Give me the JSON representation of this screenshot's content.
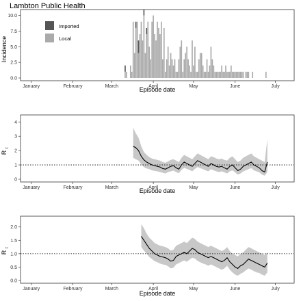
{
  "figure": {
    "title": "Lambton Public Health"
  },
  "chart_data": [
    {
      "type": "bar",
      "subtype": "stacked-bar",
      "title": "Lambton Public Health",
      "xlabel": "Episode date",
      "ylabel": "Incidence",
      "x_ticks": [
        "January",
        "February",
        "March",
        "April",
        "May",
        "June",
        "July"
      ],
      "y_ticks": [
        "0.0",
        "2.5",
        "5.0",
        "7.5",
        "10.0"
      ],
      "ylim": [
        0,
        10.5
      ],
      "legend": {
        "placement": "top-left",
        "entries": [
          {
            "name": "Imported",
            "color": "#555555"
          },
          {
            "name": "Local",
            "color": "#aaaaaa"
          }
        ]
      },
      "x_day_start": 0,
      "series": [
        {
          "name": "Local",
          "color": "#aaaaaa",
          "x": [
            70,
            71,
            74,
            75,
            76,
            77,
            78,
            79,
            80,
            81,
            82,
            83,
            84,
            85,
            86,
            87,
            88,
            89,
            90,
            91,
            92,
            93,
            94,
            95,
            96,
            97,
            98,
            99,
            100,
            101,
            102,
            103,
            104,
            105,
            106,
            107,
            108,
            109,
            110,
            111,
            112,
            113,
            114,
            115,
            116,
            117,
            118,
            119,
            120,
            121,
            122,
            123,
            124,
            125,
            126,
            127,
            128,
            129,
            130,
            131,
            132,
            133,
            134,
            135,
            136,
            137,
            138,
            139,
            140,
            141,
            142,
            143,
            144,
            145,
            146,
            147,
            148,
            149,
            150,
            151,
            152,
            153,
            154,
            155,
            156,
            157,
            158,
            160,
            161,
            162,
            165,
            175
          ],
          "values": [
            1,
            1,
            2,
            1,
            9,
            4,
            8,
            9,
            4,
            7,
            9,
            6,
            10,
            4,
            7,
            9,
            5,
            3,
            9,
            10,
            7,
            6,
            9,
            8,
            7,
            9,
            3,
            8,
            1,
            3,
            5,
            2,
            4,
            3,
            2,
            3,
            1,
            1,
            3,
            5,
            6,
            1,
            3,
            4,
            5,
            3,
            2,
            1,
            6,
            2,
            5,
            1,
            1,
            3,
            4,
            4,
            2,
            1,
            1,
            3,
            1,
            2,
            5,
            3,
            2,
            1,
            1,
            1,
            1,
            1,
            2,
            1,
            1,
            2,
            1,
            1,
            1,
            2,
            1,
            1,
            1,
            1,
            1,
            1,
            1,
            1,
            1,
            1,
            1,
            1,
            1,
            1
          ]
        },
        {
          "name": "Imported",
          "color": "#555555",
          "x": [
            70,
            78,
            80,
            84,
            86
          ],
          "values": [
            1,
            1,
            2,
            1,
            1
          ]
        }
      ]
    },
    {
      "type": "line",
      "xlabel": "Episode date",
      "ylabel": "R",
      "ylabel_sub": "t",
      "x_ticks": [
        "January",
        "February",
        "March",
        "April",
        "May",
        "June",
        "July"
      ],
      "y_ticks": [
        "0",
        "1",
        "2",
        "3",
        "4"
      ],
      "ylim": [
        0,
        4.3
      ],
      "reference_line": 1,
      "series": [
        {
          "name": "",
          "kind": "median",
          "x": [
            76,
            78,
            80,
            82,
            84,
            86,
            88,
            90,
            92,
            94,
            96,
            98,
            100,
            102,
            104,
            106,
            108,
            110,
            112,
            114,
            116,
            118,
            120,
            122,
            124,
            126,
            128,
            130,
            132,
            134,
            136,
            138,
            140,
            142,
            144,
            146,
            148,
            150,
            152,
            154,
            156,
            158,
            160,
            162,
            164,
            166,
            168,
            170,
            172,
            174,
            176
          ],
          "values": [
            2.3,
            2.2,
            2.0,
            1.6,
            1.35,
            1.2,
            1.1,
            1.0,
            0.95,
            0.9,
            0.85,
            0.75,
            0.7,
            0.8,
            0.9,
            0.95,
            0.8,
            0.7,
            1.0,
            1.2,
            1.1,
            1.0,
            0.9,
            1.1,
            1.3,
            1.2,
            1.1,
            1.0,
            0.9,
            1.1,
            1.0,
            0.9,
            0.85,
            0.9,
            0.8,
            0.7,
            0.9,
            1.0,
            0.8,
            0.6,
            0.7,
            0.9,
            1.0,
            1.1,
            1.2,
            1.0,
            0.9,
            0.8,
            0.6,
            0.5,
            1.2
          ]
        },
        {
          "name": "",
          "kind": "upper",
          "x": [
            76,
            78,
            80,
            82,
            84,
            86,
            88,
            90,
            92,
            94,
            96,
            98,
            100,
            102,
            104,
            106,
            108,
            110,
            112,
            114,
            116,
            118,
            120,
            122,
            124,
            126,
            128,
            130,
            132,
            134,
            136,
            138,
            140,
            142,
            144,
            146,
            148,
            150,
            152,
            154,
            156,
            158,
            160,
            162,
            164,
            166,
            168,
            170,
            172,
            174,
            176
          ],
          "values": [
            3.6,
            3.2,
            2.9,
            2.3,
            1.9,
            1.7,
            1.55,
            1.45,
            1.4,
            1.35,
            1.3,
            1.2,
            1.15,
            1.25,
            1.35,
            1.4,
            1.3,
            1.2,
            1.5,
            1.7,
            1.6,
            1.5,
            1.4,
            1.6,
            1.8,
            1.7,
            1.6,
            1.5,
            1.4,
            1.6,
            1.55,
            1.45,
            1.4,
            1.45,
            1.35,
            1.3,
            1.5,
            1.6,
            1.4,
            1.2,
            1.3,
            1.5,
            1.6,
            1.7,
            1.8,
            1.6,
            1.5,
            1.4,
            1.3,
            1.2,
            2.8
          ]
        },
        {
          "name": "",
          "kind": "lower",
          "x": [
            76,
            78,
            80,
            82,
            84,
            86,
            88,
            90,
            92,
            94,
            96,
            98,
            100,
            102,
            104,
            106,
            108,
            110,
            112,
            114,
            116,
            118,
            120,
            122,
            124,
            126,
            128,
            130,
            132,
            134,
            136,
            138,
            140,
            142,
            144,
            146,
            148,
            150,
            152,
            154,
            156,
            158,
            160,
            162,
            164,
            166,
            168,
            170,
            172,
            174,
            176
          ],
          "values": [
            1.5,
            1.4,
            1.3,
            1.05,
            0.85,
            0.75,
            0.7,
            0.62,
            0.58,
            0.55,
            0.5,
            0.45,
            0.4,
            0.5,
            0.55,
            0.6,
            0.5,
            0.42,
            0.65,
            0.8,
            0.72,
            0.65,
            0.55,
            0.72,
            0.85,
            0.78,
            0.7,
            0.62,
            0.55,
            0.7,
            0.62,
            0.55,
            0.5,
            0.55,
            0.48,
            0.4,
            0.55,
            0.62,
            0.48,
            0.32,
            0.4,
            0.55,
            0.62,
            0.7,
            0.78,
            0.62,
            0.55,
            0.48,
            0.32,
            0.25,
            0.5
          ]
        }
      ]
    },
    {
      "type": "line",
      "xlabel": "Episode date",
      "ylabel": "R",
      "ylabel_sub": "t",
      "x_ticks": [
        "January",
        "February",
        "March",
        "April",
        "May",
        "June",
        "July"
      ],
      "y_ticks": [
        "0.0",
        "0.5",
        "1.0",
        "1.5",
        "2.0"
      ],
      "ylim": [
        0,
        2.3
      ],
      "reference_line": 1,
      "series": [
        {
          "name": "",
          "kind": "median",
          "x": [
            82,
            84,
            86,
            88,
            90,
            92,
            94,
            96,
            98,
            100,
            102,
            104,
            106,
            108,
            110,
            112,
            114,
            116,
            118,
            120,
            122,
            124,
            126,
            128,
            130,
            132,
            134,
            136,
            138,
            140,
            142,
            144,
            146,
            148,
            150,
            152,
            154,
            156,
            158,
            160,
            162,
            164,
            166,
            168,
            170,
            172,
            174,
            176
          ],
          "values": [
            1.65,
            1.5,
            1.35,
            1.2,
            1.1,
            1.0,
            0.95,
            0.9,
            0.88,
            0.85,
            0.8,
            0.72,
            0.75,
            0.9,
            0.95,
            1.0,
            1.05,
            1.0,
            1.1,
            1.2,
            1.15,
            1.05,
            1.0,
            0.95,
            0.9,
            0.85,
            0.9,
            0.85,
            0.8,
            0.75,
            0.7,
            0.75,
            0.85,
            0.7,
            0.6,
            0.5,
            0.45,
            0.55,
            0.6,
            0.7,
            0.8,
            0.75,
            0.7,
            0.65,
            0.6,
            0.55,
            0.5,
            0.65
          ]
        },
        {
          "name": "",
          "kind": "upper",
          "x": [
            82,
            84,
            86,
            88,
            90,
            92,
            94,
            96,
            98,
            100,
            102,
            104,
            106,
            108,
            110,
            112,
            114,
            116,
            118,
            120,
            122,
            124,
            126,
            128,
            130,
            132,
            134,
            136,
            138,
            140,
            142,
            144,
            146,
            148,
            150,
            152,
            154,
            156,
            158,
            160,
            162,
            164,
            166,
            168,
            170,
            172,
            174,
            176
          ],
          "values": [
            2.1,
            1.95,
            1.75,
            1.6,
            1.5,
            1.4,
            1.35,
            1.3,
            1.28,
            1.25,
            1.2,
            1.12,
            1.15,
            1.3,
            1.35,
            1.4,
            1.45,
            1.4,
            1.5,
            1.6,
            1.55,
            1.45,
            1.4,
            1.35,
            1.3,
            1.25,
            1.3,
            1.25,
            1.2,
            1.15,
            1.1,
            1.15,
            1.25,
            1.1,
            1.0,
            0.95,
            0.9,
            1.0,
            1.05,
            1.15,
            1.25,
            1.2,
            1.15,
            1.1,
            1.05,
            1.0,
            0.95,
            1.05
          ]
        },
        {
          "name": "",
          "kind": "lower",
          "x": [
            82,
            84,
            86,
            88,
            90,
            92,
            94,
            96,
            98,
            100,
            102,
            104,
            106,
            108,
            110,
            112,
            114,
            116,
            118,
            120,
            122,
            124,
            126,
            128,
            130,
            132,
            134,
            136,
            138,
            140,
            142,
            144,
            146,
            148,
            150,
            152,
            154,
            156,
            158,
            160,
            162,
            164,
            166,
            168,
            170,
            172,
            174,
            176
          ],
          "values": [
            1.25,
            1.12,
            1.0,
            0.88,
            0.8,
            0.72,
            0.68,
            0.63,
            0.6,
            0.58,
            0.53,
            0.45,
            0.48,
            0.6,
            0.65,
            0.7,
            0.75,
            0.7,
            0.78,
            0.85,
            0.82,
            0.73,
            0.68,
            0.63,
            0.6,
            0.55,
            0.6,
            0.55,
            0.5,
            0.45,
            0.4,
            0.45,
            0.55,
            0.4,
            0.3,
            0.22,
            0.18,
            0.25,
            0.3,
            0.38,
            0.45,
            0.4,
            0.35,
            0.3,
            0.28,
            0.22,
            0.18,
            0.3
          ]
        }
      ]
    }
  ]
}
